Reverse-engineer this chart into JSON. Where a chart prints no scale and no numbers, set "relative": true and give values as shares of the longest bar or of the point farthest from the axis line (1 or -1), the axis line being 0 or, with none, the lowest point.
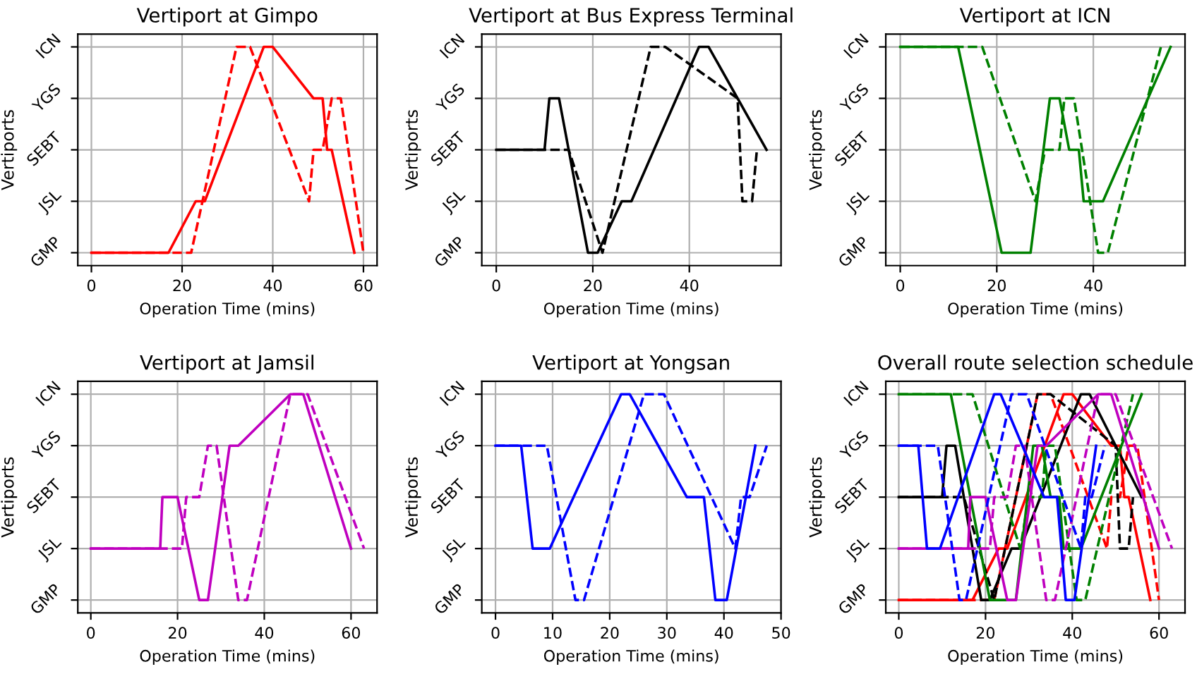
{
  "chart_data": [
    {
      "type": "line",
      "relative": true,
      "title": "Vertiport at Gimpo",
      "xlabel": "Operation Time (mins)",
      "ylabel": "Vertiports",
      "xlim": [
        -3,
        63
      ],
      "xticks": [
        0,
        20,
        40,
        60
      ],
      "y_categories": [
        "ICN",
        "YGS",
        "SEBT",
        "JSL",
        "GMP"
      ],
      "grid": true,
      "marker": "none",
      "series": [
        {
          "color": "#ff0000",
          "line_style": "solid",
          "x": [
            0,
            17,
            23,
            25,
            38,
            40,
            49,
            51,
            52,
            53,
            58
          ],
          "values": [
            0,
            0,
            0.25,
            0.25,
            1,
            1,
            0.75,
            0.75,
            0.5,
            0.5,
            0
          ]
        },
        {
          "color": "#ff0000",
          "line_style": "dashed",
          "x": [
            0,
            22,
            32,
            35,
            48,
            49,
            51,
            53,
            55,
            60
          ],
          "values": [
            0,
            0,
            1,
            1,
            0.25,
            0.5,
            0.5,
            0.75,
            0.75,
            0
          ]
        }
      ]
    },
    {
      "type": "line",
      "relative": true,
      "title": "Vertiport at Bus Express Terminal",
      "xlabel": "Operation Time (mins)",
      "ylabel": "Vertiports",
      "xlim": [
        -3,
        59
      ],
      "xticks": [
        0,
        20,
        40
      ],
      "y_categories": [
        "ICN",
        "YGS",
        "SEBT",
        "JSL",
        "GMP"
      ],
      "grid": true,
      "marker": "none",
      "series": [
        {
          "color": "#000000",
          "line_style": "solid",
          "x": [
            0,
            10,
            11,
            13,
            19,
            21,
            26,
            28,
            42,
            44,
            56
          ],
          "values": [
            0.5,
            0.5,
            0.75,
            0.75,
            0,
            0,
            0.25,
            0.25,
            1,
            1,
            0.5
          ]
        },
        {
          "color": "#000000",
          "line_style": "dashed",
          "x": [
            0,
            15,
            22,
            32,
            35,
            50,
            51,
            53,
            54
          ],
          "values": [
            0.5,
            0.5,
            0,
            1,
            1,
            0.75,
            0.25,
            0.25,
            0.5
          ]
        }
      ]
    },
    {
      "type": "line",
      "relative": true,
      "title": "Vertiport at ICN",
      "xlabel": "Operation Time (mins)",
      "ylabel": "Vertiports",
      "xlim": [
        -3,
        59
      ],
      "xticks": [
        0,
        20,
        40
      ],
      "y_categories": [
        "ICN",
        "YGS",
        "SEBT",
        "JSL",
        "GMP"
      ],
      "grid": true,
      "marker": "none",
      "series": [
        {
          "color": "#008000",
          "line_style": "solid",
          "x": [
            0,
            12,
            21,
            27,
            31,
            33,
            35,
            37,
            38,
            42,
            56
          ],
          "values": [
            1,
            1,
            0,
            0,
            0.75,
            0.75,
            0.5,
            0.5,
            0.25,
            0.25,
            1
          ]
        },
        {
          "color": "#008000",
          "line_style": "dashed",
          "x": [
            0,
            17,
            28,
            30,
            33,
            34,
            36,
            41,
            43,
            54
          ],
          "values": [
            1,
            1,
            0.25,
            0.5,
            0.5,
            0.75,
            0.75,
            0,
            0,
            1
          ]
        }
      ]
    },
    {
      "type": "line",
      "relative": true,
      "title": "Vertiport at Jamsil",
      "xlabel": "Operation Time (mins)",
      "ylabel": "Vertiports",
      "xlim": [
        -3,
        66
      ],
      "xticks": [
        0,
        20,
        40,
        60
      ],
      "y_categories": [
        "ICN",
        "YGS",
        "SEBT",
        "JSL",
        "GMP"
      ],
      "grid": true,
      "marker": "none",
      "series": [
        {
          "color": "#bf00bf",
          "line_style": "solid",
          "x": [
            0,
            16,
            16.5,
            20,
            25,
            27,
            32,
            34,
            46,
            49,
            60
          ],
          "values": [
            0.25,
            0.25,
            0.5,
            0.5,
            0,
            0,
            0.75,
            0.75,
            1,
            1,
            0.25
          ]
        },
        {
          "color": "#bf00bf",
          "line_style": "dashed",
          "x": [
            0,
            21,
            22,
            25,
            27,
            29,
            34,
            36,
            46,
            50,
            63
          ],
          "values": [
            0.25,
            0.25,
            0.5,
            0.5,
            0.75,
            0.75,
            0,
            0,
            1,
            1,
            0.25
          ]
        }
      ]
    },
    {
      "type": "line",
      "relative": true,
      "title": "Vertiport at Yongsan",
      "xlabel": "Operation Time (mins)",
      "ylabel": "Vertiports",
      "xlim": [
        -2.4,
        50
      ],
      "xticks": [
        0,
        10,
        20,
        30,
        40,
        50
      ],
      "y_categories": [
        "ICN",
        "YGS",
        "SEBT",
        "JSL",
        "GMP"
      ],
      "grid": true,
      "marker": "none",
      "series": [
        {
          "color": "#0000ff",
          "line_style": "solid",
          "x": [
            0,
            4.5,
            6.5,
            9.5,
            22,
            23.5,
            33.5,
            36.5,
            38.5,
            40.5,
            45.5
          ],
          "values": [
            0.75,
            0.75,
            0.25,
            0.25,
            1,
            1,
            0.5,
            0.5,
            0,
            0,
            0.75
          ]
        },
        {
          "color": "#0000ff",
          "line_style": "dashed",
          "x": [
            0,
            9,
            14,
            15.5,
            26,
            29.5,
            42,
            43,
            44.5,
            47.5
          ],
          "values": [
            0.75,
            0.75,
            0,
            0,
            1,
            1,
            0.25,
            0.5,
            0.5,
            0.75
          ]
        }
      ]
    },
    {
      "type": "line",
      "relative": true,
      "title": "Overall route selection schedule",
      "xlabel": "Operation Time (mins)",
      "ylabel": "Vertiports",
      "xlim": [
        -3,
        66
      ],
      "xticks": [
        0,
        20,
        40,
        60
      ],
      "y_categories": [
        "ICN",
        "YGS",
        "SEBT",
        "JSL",
        "GMP"
      ],
      "grid": true,
      "marker": "none",
      "series": [
        {
          "color": "#ff0000",
          "line_style": "solid",
          "x": [
            0,
            17,
            23,
            25,
            38,
            40,
            49,
            51,
            52,
            53,
            58
          ],
          "values": [
            0,
            0,
            0.25,
            0.25,
            1,
            1,
            0.75,
            0.75,
            0.5,
            0.5,
            0
          ]
        },
        {
          "color": "#ff0000",
          "line_style": "dashed",
          "x": [
            0,
            22,
            32,
            35,
            48,
            49,
            51,
            53,
            55,
            60
          ],
          "values": [
            0,
            0,
            1,
            1,
            0.25,
            0.5,
            0.5,
            0.75,
            0.75,
            0
          ]
        },
        {
          "color": "#000000",
          "line_style": "solid",
          "x": [
            0,
            10,
            11,
            13,
            19,
            21,
            26,
            28,
            42,
            44,
            56
          ],
          "values": [
            0.5,
            0.5,
            0.75,
            0.75,
            0,
            0,
            0.25,
            0.25,
            1,
            1,
            0.5
          ]
        },
        {
          "color": "#000000",
          "line_style": "dashed",
          "x": [
            0,
            15,
            22,
            32,
            35,
            50,
            51,
            53,
            54
          ],
          "values": [
            0.5,
            0.5,
            0,
            1,
            1,
            0.75,
            0.25,
            0.25,
            0.5
          ]
        },
        {
          "color": "#008000",
          "line_style": "solid",
          "x": [
            0,
            12,
            21,
            27,
            31,
            33,
            35,
            37,
            38,
            42,
            56
          ],
          "values": [
            1,
            1,
            0,
            0,
            0.75,
            0.75,
            0.5,
            0.5,
            0.25,
            0.25,
            1
          ]
        },
        {
          "color": "#008000",
          "line_style": "dashed",
          "x": [
            0,
            17,
            28,
            30,
            33,
            34,
            36,
            41,
            43,
            54
          ],
          "values": [
            1,
            1,
            0.25,
            0.5,
            0.5,
            0.75,
            0.75,
            0,
            0,
            1
          ]
        },
        {
          "color": "#bf00bf",
          "line_style": "solid",
          "x": [
            0,
            16,
            16.5,
            20,
            25,
            27,
            32,
            34,
            46,
            49,
            60
          ],
          "values": [
            0.25,
            0.25,
            0.5,
            0.5,
            0,
            0,
            0.75,
            0.75,
            1,
            1,
            0.25
          ]
        },
        {
          "color": "#bf00bf",
          "line_style": "dashed",
          "x": [
            0,
            21,
            22,
            25,
            27,
            29,
            34,
            36,
            46,
            50,
            63
          ],
          "values": [
            0.25,
            0.25,
            0.5,
            0.5,
            0.75,
            0.75,
            0,
            0,
            1,
            1,
            0.25
          ]
        },
        {
          "color": "#0000ff",
          "line_style": "solid",
          "x": [
            0,
            4.5,
            6.5,
            9.5,
            22,
            23.5,
            33.5,
            36.5,
            38.5,
            40.5,
            45.5
          ],
          "values": [
            0.75,
            0.75,
            0.25,
            0.25,
            1,
            1,
            0.5,
            0.5,
            0,
            0,
            0.75
          ]
        },
        {
          "color": "#0000ff",
          "line_style": "dashed",
          "x": [
            0,
            9,
            14,
            15.5,
            26,
            29.5,
            42,
            43,
            44.5,
            47.5
          ],
          "values": [
            0.75,
            0.75,
            0,
            0,
            1,
            1,
            0.25,
            0.5,
            0.5,
            0.75
          ]
        }
      ]
    }
  ]
}
